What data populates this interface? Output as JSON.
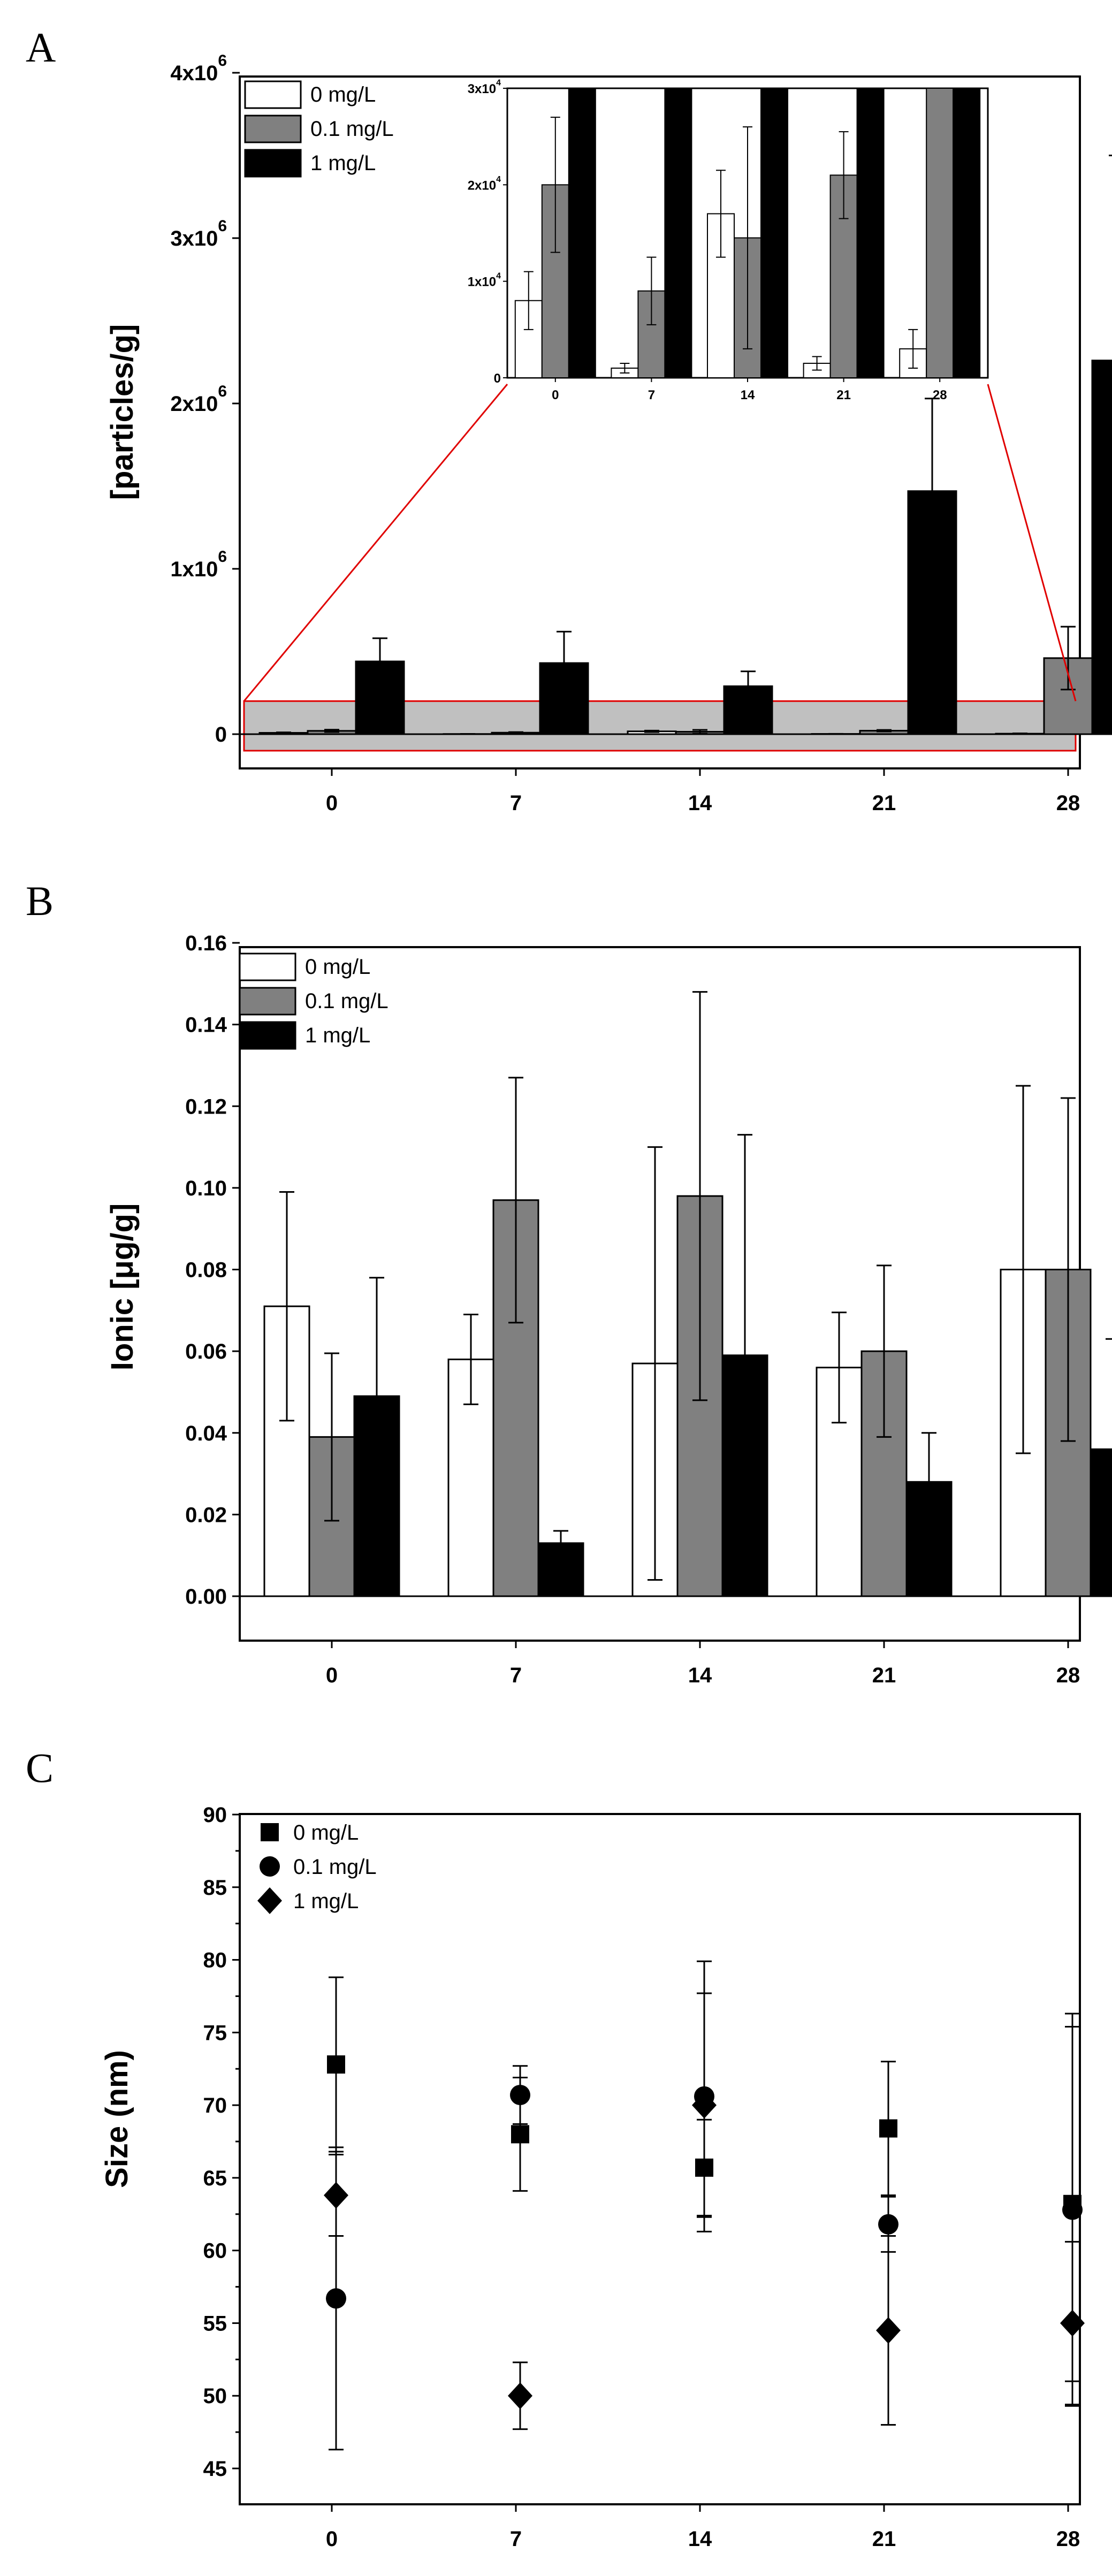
{
  "chart_data": [
    {
      "panel": "A",
      "type": "bar",
      "categories": [
        "0",
        "7",
        "14",
        "21",
        "28"
      ],
      "ylabel": "[particles/g]",
      "ylim": [
        -100000,
        4000000
      ],
      "ytick_labels": [
        "0",
        "1x10^6",
        "2x10^6",
        "3x10^6",
        "4x10^6"
      ],
      "highlight_range": [
        -100000,
        200000
      ],
      "series": [
        {
          "name": "0 mg/L",
          "color": "#ffffff",
          "values": [
            8000,
            1000,
            17000,
            1500,
            3000
          ],
          "errors": [
            3000,
            500,
            4500,
            700,
            2000
          ]
        },
        {
          "name": "0.1 mg/L",
          "color": "#808080",
          "values": [
            20000,
            9000,
            14500,
            21000,
            460000
          ],
          "errors": [
            7000,
            3500,
            11500,
            4500,
            190000
          ]
        },
        {
          "name": "1 mg/L",
          "color": "#000000",
          "values": [
            440000,
            430000,
            290000,
            1470000,
            2260000
          ],
          "errors": [
            140000,
            190000,
            90000,
            560000,
            1240000
          ]
        }
      ],
      "inset": {
        "ylim": [
          0,
          30000
        ],
        "ytick_labels": [
          "0",
          "1x10^4",
          "2x10^4",
          "3x10^4"
        ],
        "categories": [
          "0",
          "7",
          "14",
          "21",
          "28"
        ]
      }
    },
    {
      "panel": "B",
      "type": "bar",
      "categories": [
        "0",
        "7",
        "14",
        "21",
        "28"
      ],
      "ylabel": "Ionic [μg/g]",
      "ylim": [
        -0.01,
        0.16
      ],
      "yticks": [
        "0.00",
        "0.02",
        "0.04",
        "0.06",
        "0.08",
        "0.10",
        "0.12",
        "0.14",
        "0.16"
      ],
      "series": [
        {
          "name": "0 mg/L",
          "color": "#ffffff",
          "values": [
            0.071,
            0.058,
            0.057,
            0.056,
            0.08
          ],
          "errors": [
            0.028,
            0.011,
            0.053,
            0.0135,
            0.045
          ]
        },
        {
          "name": "0.1 mg/L",
          "color": "#808080",
          "values": [
            0.039,
            0.097,
            0.098,
            0.06,
            0.08
          ],
          "errors": [
            0.0205,
            0.03,
            0.05,
            0.021,
            0.042
          ]
        },
        {
          "name": "1 mg/L",
          "color": "#000000",
          "values": [
            0.049,
            0.013,
            0.059,
            0.028,
            0.036
          ],
          "errors": [
            0.029,
            0.003,
            0.054,
            0.012,
            0.027
          ]
        }
      ]
    },
    {
      "panel": "C",
      "type": "scatter",
      "categories": [
        "0",
        "7",
        "14",
        "21",
        "28"
      ],
      "ylabel": "Size (nm)",
      "ylim": [
        42.5,
        90
      ],
      "yticks": [
        "45",
        "50",
        "55",
        "60",
        "65",
        "70",
        "75",
        "80",
        "85",
        "90"
      ],
      "series": [
        {
          "name": "0 mg/L",
          "marker": "square",
          "values": [
            72.8,
            68.0,
            65.7,
            68.4,
            63.2
          ],
          "errors": [
            6.0,
            3.9,
            3.3,
            4.6,
            12.2
          ]
        },
        {
          "name": "0.1 mg/L",
          "marker": "circle",
          "values": [
            56.7,
            70.7,
            70.6,
            61.8,
            62.8
          ],
          "errors": [
            10.4,
            2.0,
            9.3,
            1.9,
            13.5
          ]
        },
        {
          "name": "1 mg/L",
          "marker": "diamond",
          "values": [
            63.8,
            50.0,
            70.0,
            54.5,
            55.0
          ],
          "errors": [
            2.8,
            2.3,
            7.7,
            6.5,
            5.6
          ]
        }
      ]
    }
  ],
  "panels": {
    "a": "A",
    "b": "B",
    "c": "C"
  },
  "legend": {
    "s0": "0 mg/L",
    "s1": "0.1 mg/L",
    "s2": "1 mg/L"
  },
  "axes": {
    "a_ylabel": "[particles/g]",
    "b_ylabel": "Ionic [μg/g]",
    "c_ylabel": "Size (nm)"
  }
}
